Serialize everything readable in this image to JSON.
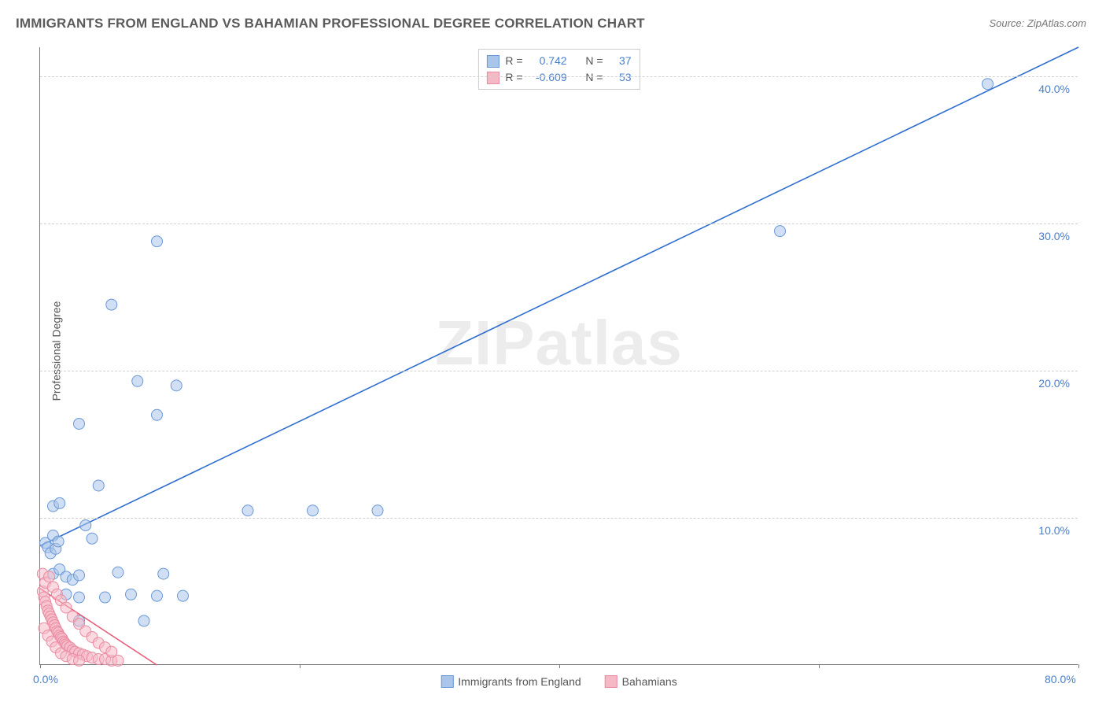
{
  "title": "IMMIGRANTS FROM ENGLAND VS BAHAMIAN PROFESSIONAL DEGREE CORRELATION CHART",
  "source_label": "Source: ",
  "source_value": "ZipAtlas.com",
  "watermark": "ZIPatlas",
  "ylabel": "Professional Degree",
  "chart": {
    "type": "scatter",
    "xlim": [
      0,
      80
    ],
    "ylim": [
      0,
      42
    ],
    "x_ticks": [
      0,
      20,
      40,
      60,
      80
    ],
    "y_gridlines": [
      10,
      20,
      30,
      40
    ],
    "y_tick_labels": [
      "10.0%",
      "20.0%",
      "30.0%",
      "40.0%"
    ],
    "x_origin_label": "0.0%",
    "x_max_label": "80.0%",
    "background_color": "#ffffff",
    "grid_color": "#d0d0d0",
    "axis_color": "#777777",
    "marker_radius": 7,
    "marker_opacity": 0.55,
    "line_width": 1.6
  },
  "series": [
    {
      "name": "Immigrants from England",
      "color_fill": "#a9c5ea",
      "color_stroke": "#6b98d6",
      "line_color": "#2f6fd0",
      "R": "0.742",
      "N": "37",
      "regression": {
        "x1": 0,
        "y1": 8.1,
        "x2": 80,
        "y2": 42
      },
      "points": [
        [
          0.4,
          8.3
        ],
        [
          0.6,
          8.0
        ],
        [
          0.8,
          7.6
        ],
        [
          1.0,
          8.8
        ],
        [
          1.2,
          7.9
        ],
        [
          1.4,
          8.4
        ],
        [
          1.0,
          6.2
        ],
        [
          1.5,
          6.5
        ],
        [
          2.0,
          6.0
        ],
        [
          2.5,
          5.8
        ],
        [
          3.0,
          6.1
        ],
        [
          1.0,
          10.8
        ],
        [
          1.5,
          11.0
        ],
        [
          3.5,
          9.5
        ],
        [
          4.0,
          8.6
        ],
        [
          2.0,
          4.8
        ],
        [
          3.0,
          4.6
        ],
        [
          5.0,
          4.6
        ],
        [
          7.0,
          4.8
        ],
        [
          9.0,
          4.7
        ],
        [
          11.0,
          4.7
        ],
        [
          6.0,
          6.3
        ],
        [
          9.5,
          6.2
        ],
        [
          4.5,
          12.2
        ],
        [
          3.0,
          16.4
        ],
        [
          7.5,
          19.3
        ],
        [
          10.5,
          19.0
        ],
        [
          9.0,
          17.0
        ],
        [
          5.5,
          24.5
        ],
        [
          9.0,
          28.8
        ],
        [
          16.0,
          10.5
        ],
        [
          21.0,
          10.5
        ],
        [
          26.0,
          10.5
        ],
        [
          8.0,
          3.0
        ],
        [
          3.0,
          3.0
        ],
        [
          57.0,
          29.5
        ],
        [
          73.0,
          39.5
        ]
      ]
    },
    {
      "name": "Bahamians",
      "color_fill": "#f5b9c6",
      "color_stroke": "#e98ba1",
      "line_color": "#e85d7a",
      "R": "-0.609",
      "N": "53",
      "regression": {
        "x1": 0,
        "y1": 5.2,
        "x2": 9,
        "y2": 0
      },
      "points": [
        [
          0.2,
          5.0
        ],
        [
          0.3,
          4.6
        ],
        [
          0.4,
          4.3
        ],
        [
          0.5,
          4.0
        ],
        [
          0.6,
          3.7
        ],
        [
          0.7,
          3.5
        ],
        [
          0.8,
          3.3
        ],
        [
          0.9,
          3.1
        ],
        [
          1.0,
          2.9
        ],
        [
          1.1,
          2.7
        ],
        [
          1.2,
          2.5
        ],
        [
          1.3,
          2.3
        ],
        [
          1.4,
          2.2
        ],
        [
          1.5,
          2.0
        ],
        [
          1.6,
          1.9
        ],
        [
          1.7,
          1.8
        ],
        [
          1.8,
          1.6
        ],
        [
          1.9,
          1.5
        ],
        [
          2.0,
          1.4
        ],
        [
          2.1,
          1.3
        ],
        [
          2.3,
          1.2
        ],
        [
          2.5,
          1.0
        ],
        [
          2.7,
          0.9
        ],
        [
          3.0,
          0.8
        ],
        [
          3.3,
          0.7
        ],
        [
          3.6,
          0.6
        ],
        [
          4.0,
          0.5
        ],
        [
          4.5,
          0.4
        ],
        [
          5.0,
          0.4
        ],
        [
          5.5,
          0.3
        ],
        [
          6.0,
          0.3
        ],
        [
          0.2,
          6.2
        ],
        [
          0.4,
          5.6
        ],
        [
          0.7,
          6.0
        ],
        [
          1.0,
          5.3
        ],
        [
          1.3,
          4.8
        ],
        [
          1.6,
          4.4
        ],
        [
          2.0,
          3.9
        ],
        [
          2.5,
          3.3
        ],
        [
          3.0,
          2.8
        ],
        [
          3.5,
          2.3
        ],
        [
          4.0,
          1.9
        ],
        [
          4.5,
          1.5
        ],
        [
          5.0,
          1.2
        ],
        [
          5.5,
          0.9
        ],
        [
          0.3,
          2.5
        ],
        [
          0.6,
          2.0
        ],
        [
          0.9,
          1.6
        ],
        [
          1.2,
          1.2
        ],
        [
          1.6,
          0.8
        ],
        [
          2.0,
          0.6
        ],
        [
          2.5,
          0.4
        ],
        [
          3.0,
          0.3
        ]
      ]
    }
  ],
  "stats_labels": {
    "R": "R =",
    "N": "N ="
  },
  "legend_series": [
    {
      "label": "Immigrants from England",
      "fill": "#a9c5ea",
      "stroke": "#6b98d6"
    },
    {
      "label": "Bahamians",
      "fill": "#f5b9c6",
      "stroke": "#e98ba1"
    }
  ]
}
